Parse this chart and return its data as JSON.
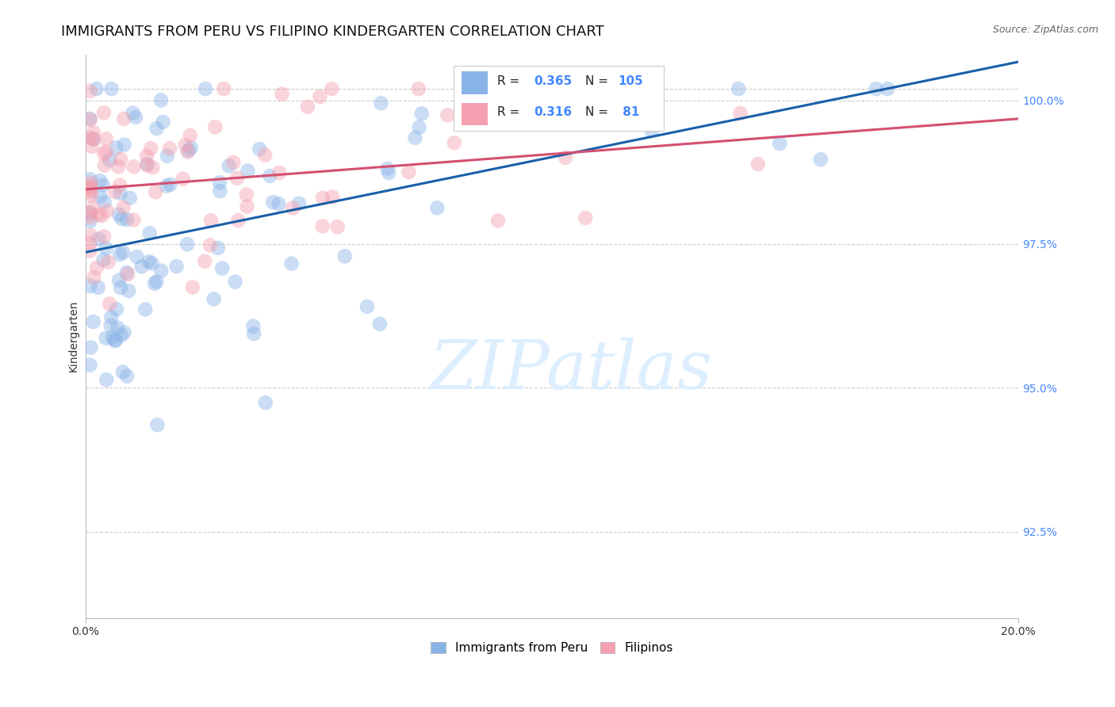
{
  "title": "IMMIGRANTS FROM PERU VS FILIPINO KINDERGARTEN CORRELATION CHART",
  "source": "Source: ZipAtlas.com",
  "ylabel": "Kindergarten",
  "ytick_labels": [
    "92.5%",
    "95.0%",
    "97.5%",
    "100.0%"
  ],
  "ytick_values": [
    0.925,
    0.95,
    0.975,
    1.0
  ],
  "xlim": [
    0.0,
    0.2
  ],
  "ylim": [
    0.91,
    1.008
  ],
  "xtick_positions": [
    0.0,
    0.2
  ],
  "xtick_labels": [
    "0.0%",
    "20.0%"
  ],
  "peru_color": "#8ab4e8",
  "filipino_color": "#f4a0b0",
  "peru_line_color": "#1a5fa8",
  "filipino_line_color": "#d45070",
  "watermark_text": "ZIPatlas",
  "watermark_color": "#ddeeff",
  "background_color": "#ffffff",
  "grid_color": "#cccccc",
  "tick_color": "#4488ff",
  "marker_size": 180,
  "marker_alpha": 0.45,
  "line_width": 2.2,
  "title_fontsize": 13,
  "source_fontsize": 9,
  "axis_label_fontsize": 10,
  "tick_fontsize": 10,
  "legend_r_color": "#4488ff",
  "legend_n_color": "#4488ff"
}
